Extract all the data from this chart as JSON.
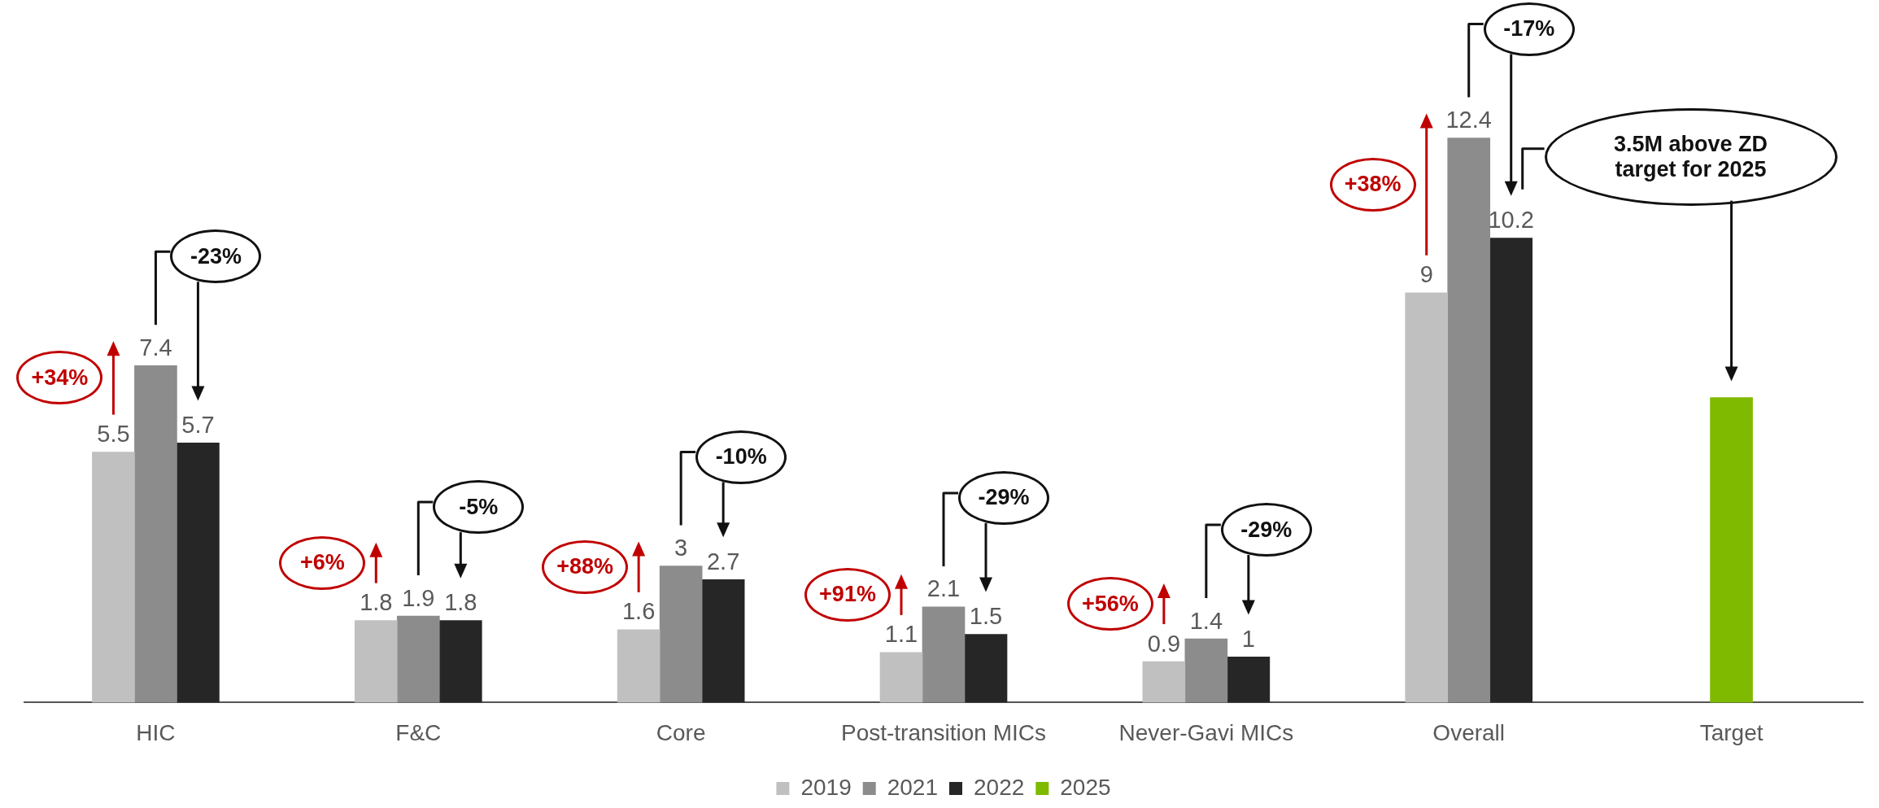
{
  "chart_data": {
    "type": "bar",
    "categories": [
      "HIC",
      "F&C",
      "Core",
      "Post-transition MICs",
      "Never-Gavi MICs",
      "Overall",
      "Target"
    ],
    "series": [
      {
        "name": "2019",
        "color": "#c0c0c0",
        "values": [
          5.5,
          1.8,
          1.6,
          1.1,
          0.9,
          9,
          null
        ],
        "value_labels": [
          "5.5",
          "1.8",
          "1.6",
          "1.1",
          "0.9",
          "9",
          null
        ]
      },
      {
        "name": "2021",
        "color": "#8c8c8c",
        "values": [
          7.4,
          1.9,
          3,
          2.1,
          1.4,
          12.4,
          null
        ],
        "value_labels": [
          "7.4",
          "1.9",
          "3",
          "2.1",
          "1.4",
          "12.4",
          null
        ]
      },
      {
        "name": "2022",
        "color": "#262626",
        "values": [
          5.7,
          1.8,
          2.7,
          1.5,
          1,
          10.2,
          null
        ],
        "value_labels": [
          "5.7",
          "1.8",
          "2.7",
          "1.5",
          "1",
          "10.2",
          null
        ]
      },
      {
        "name": "2025",
        "color": "#7fba00",
        "values": [
          null,
          null,
          null,
          null,
          null,
          null,
          6.7
        ],
        "value_labels": [
          null,
          null,
          null,
          null,
          null,
          null,
          null
        ]
      }
    ],
    "tick_labels": "x",
    "grid": false,
    "legend": "bottom",
    "annotations": [
      "+34%",
      "-23%",
      "+6%",
      "-5%",
      "+88%",
      "-10%",
      "+91%",
      "-29%",
      "+56%",
      "-29%",
      "+38%",
      "-17%",
      "3.5M above ZD target for 2025"
    ]
  }
}
